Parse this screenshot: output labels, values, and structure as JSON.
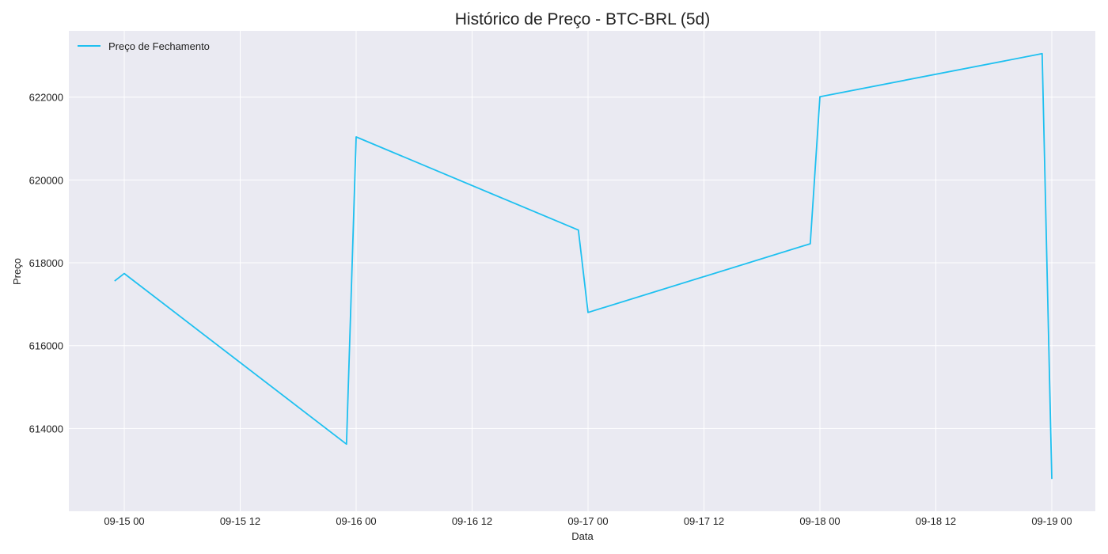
{
  "chart_data": {
    "type": "line",
    "title": "Histórico de Preço - BTC-BRL (5d)",
    "xlabel": "Data",
    "ylabel": "Preço",
    "grid": true,
    "legend_position": "top-left",
    "x_ticks": [
      "09-15 00",
      "09-15 12",
      "09-16 00",
      "09-16 12",
      "09-17 00",
      "09-17 12",
      "09-18 00",
      "09-18 12",
      "09-19 00"
    ],
    "y_ticks": [
      "614000",
      "616000",
      "618000",
      "620000",
      "622000"
    ],
    "ylim": [
      612000,
      623600
    ],
    "series": [
      {
        "name": "Preço de Fechamento",
        "color": "#1ec0f0",
        "x": [
          "2025-09-14 23:00",
          "2025-09-15 00:00",
          "2025-09-15 23:00",
          "2025-09-16 00:00",
          "2025-09-16 23:00",
          "2025-09-17 00:00",
          "2025-09-17 23:00",
          "2025-09-18 00:00",
          "2025-09-18 23:00",
          "2025-09-19 00:00"
        ],
        "y": [
          617560,
          617740,
          613620,
          621040,
          618790,
          616800,
          618460,
          622010,
          623050,
          612780
        ]
      }
    ]
  }
}
